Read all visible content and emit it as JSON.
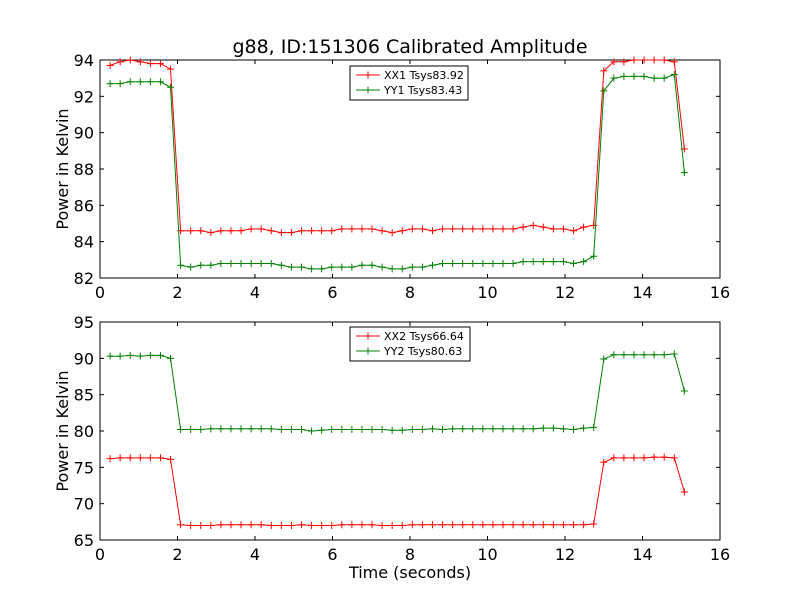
{
  "chart_data": [
    {
      "type": "line",
      "title": "g88, ID:151306 Calibrated Amplitude",
      "xlabel": "",
      "ylabel": "Power in Kelvin",
      "xlim": [
        0,
        16
      ],
      "ylim": [
        82,
        94
      ],
      "xticks": [
        0,
        2,
        4,
        6,
        8,
        10,
        12,
        14,
        16
      ],
      "yticks": [
        82,
        84,
        86,
        88,
        90,
        92,
        94
      ],
      "legend_position": "upper center",
      "x": [
        0.26,
        0.52,
        0.78,
        1.04,
        1.3,
        1.56,
        1.82,
        2.08,
        2.34,
        2.6,
        2.86,
        3.12,
        3.38,
        3.64,
        3.9,
        4.16,
        4.42,
        4.68,
        4.94,
        5.2,
        5.46,
        5.72,
        5.98,
        6.24,
        6.5,
        6.76,
        7.02,
        7.28,
        7.54,
        7.8,
        8.06,
        8.32,
        8.58,
        8.84,
        9.1,
        9.36,
        9.62,
        9.88,
        10.14,
        10.4,
        10.66,
        10.92,
        11.18,
        11.44,
        11.7,
        11.96,
        12.22,
        12.48,
        12.74,
        13.0,
        13.26,
        13.52,
        13.78,
        14.04,
        14.3,
        14.56,
        14.82,
        15.08
      ],
      "series": [
        {
          "name": "XX1 Tsys83.92",
          "color": "#ff0000",
          "values": [
            93.7,
            93.9,
            94.0,
            93.9,
            93.8,
            93.8,
            93.5,
            84.6,
            84.6,
            84.6,
            84.5,
            84.6,
            84.6,
            84.6,
            84.7,
            84.7,
            84.6,
            84.5,
            84.5,
            84.6,
            84.6,
            84.6,
            84.6,
            84.7,
            84.7,
            84.7,
            84.7,
            84.6,
            84.5,
            84.6,
            84.7,
            84.7,
            84.6,
            84.7,
            84.7,
            84.7,
            84.7,
            84.7,
            84.7,
            84.7,
            84.7,
            84.8,
            84.9,
            84.8,
            84.7,
            84.7,
            84.6,
            84.8,
            84.9,
            93.4,
            93.9,
            93.9,
            94.0,
            94.0,
            94.0,
            94.0,
            93.9,
            89.1
          ]
        },
        {
          "name": "YY1 Tsys83.43",
          "color": "#008000",
          "values": [
            92.7,
            92.7,
            92.8,
            92.8,
            92.8,
            92.8,
            92.5,
            82.7,
            82.6,
            82.7,
            82.7,
            82.8,
            82.8,
            82.8,
            82.8,
            82.8,
            82.8,
            82.7,
            82.6,
            82.6,
            82.5,
            82.5,
            82.6,
            82.6,
            82.6,
            82.7,
            82.7,
            82.6,
            82.5,
            82.5,
            82.6,
            82.6,
            82.7,
            82.8,
            82.8,
            82.8,
            82.8,
            82.8,
            82.8,
            82.8,
            82.8,
            82.9,
            82.9,
            82.9,
            82.9,
            82.9,
            82.8,
            82.9,
            83.2,
            92.3,
            93.0,
            93.1,
            93.1,
            93.1,
            93.0,
            93.0,
            93.2,
            87.8
          ]
        }
      ]
    },
    {
      "type": "line",
      "title": "",
      "xlabel": "Time (seconds)",
      "ylabel": "Power in Kelvin",
      "xlim": [
        0,
        16
      ],
      "ylim": [
        65,
        95
      ],
      "xticks": [
        0,
        2,
        4,
        6,
        8,
        10,
        12,
        14,
        16
      ],
      "yticks": [
        65,
        70,
        75,
        80,
        85,
        90,
        95
      ],
      "legend_position": "upper center",
      "x": [
        0.26,
        0.52,
        0.78,
        1.04,
        1.3,
        1.56,
        1.82,
        2.08,
        2.34,
        2.6,
        2.86,
        3.12,
        3.38,
        3.64,
        3.9,
        4.16,
        4.42,
        4.68,
        4.94,
        5.2,
        5.46,
        5.72,
        5.98,
        6.24,
        6.5,
        6.76,
        7.02,
        7.28,
        7.54,
        7.8,
        8.06,
        8.32,
        8.58,
        8.84,
        9.1,
        9.36,
        9.62,
        9.88,
        10.14,
        10.4,
        10.66,
        10.92,
        11.18,
        11.44,
        11.7,
        11.96,
        12.22,
        12.48,
        12.74,
        13.0,
        13.26,
        13.52,
        13.78,
        14.04,
        14.3,
        14.56,
        14.82,
        15.08
      ],
      "series": [
        {
          "name": "XX2 Tsys66.64",
          "color": "#ff0000",
          "values": [
            76.2,
            76.3,
            76.3,
            76.3,
            76.3,
            76.3,
            76.1,
            67.1,
            67.0,
            67.0,
            67.0,
            67.1,
            67.1,
            67.1,
            67.1,
            67.1,
            67.0,
            67.0,
            67.0,
            67.1,
            67.0,
            67.0,
            67.0,
            67.1,
            67.1,
            67.1,
            67.1,
            67.0,
            67.0,
            67.0,
            67.1,
            67.1,
            67.1,
            67.1,
            67.1,
            67.1,
            67.1,
            67.1,
            67.1,
            67.1,
            67.1,
            67.1,
            67.1,
            67.1,
            67.1,
            67.1,
            67.1,
            67.1,
            67.2,
            75.7,
            76.3,
            76.3,
            76.3,
            76.3,
            76.4,
            76.4,
            76.3,
            71.6
          ]
        },
        {
          "name": "YY2 Tsys80.63",
          "color": "#008000",
          "values": [
            90.3,
            90.3,
            90.4,
            90.3,
            90.4,
            90.4,
            90.0,
            80.2,
            80.2,
            80.2,
            80.3,
            80.3,
            80.3,
            80.3,
            80.3,
            80.3,
            80.3,
            80.2,
            80.2,
            80.2,
            80.0,
            80.1,
            80.2,
            80.2,
            80.2,
            80.2,
            80.2,
            80.2,
            80.1,
            80.1,
            80.2,
            80.2,
            80.3,
            80.2,
            80.3,
            80.3,
            80.3,
            80.3,
            80.3,
            80.3,
            80.3,
            80.3,
            80.3,
            80.4,
            80.4,
            80.3,
            80.2,
            80.4,
            80.5,
            89.9,
            90.5,
            90.5,
            90.5,
            90.5,
            90.5,
            90.5,
            90.6,
            85.5
          ]
        }
      ]
    }
  ]
}
